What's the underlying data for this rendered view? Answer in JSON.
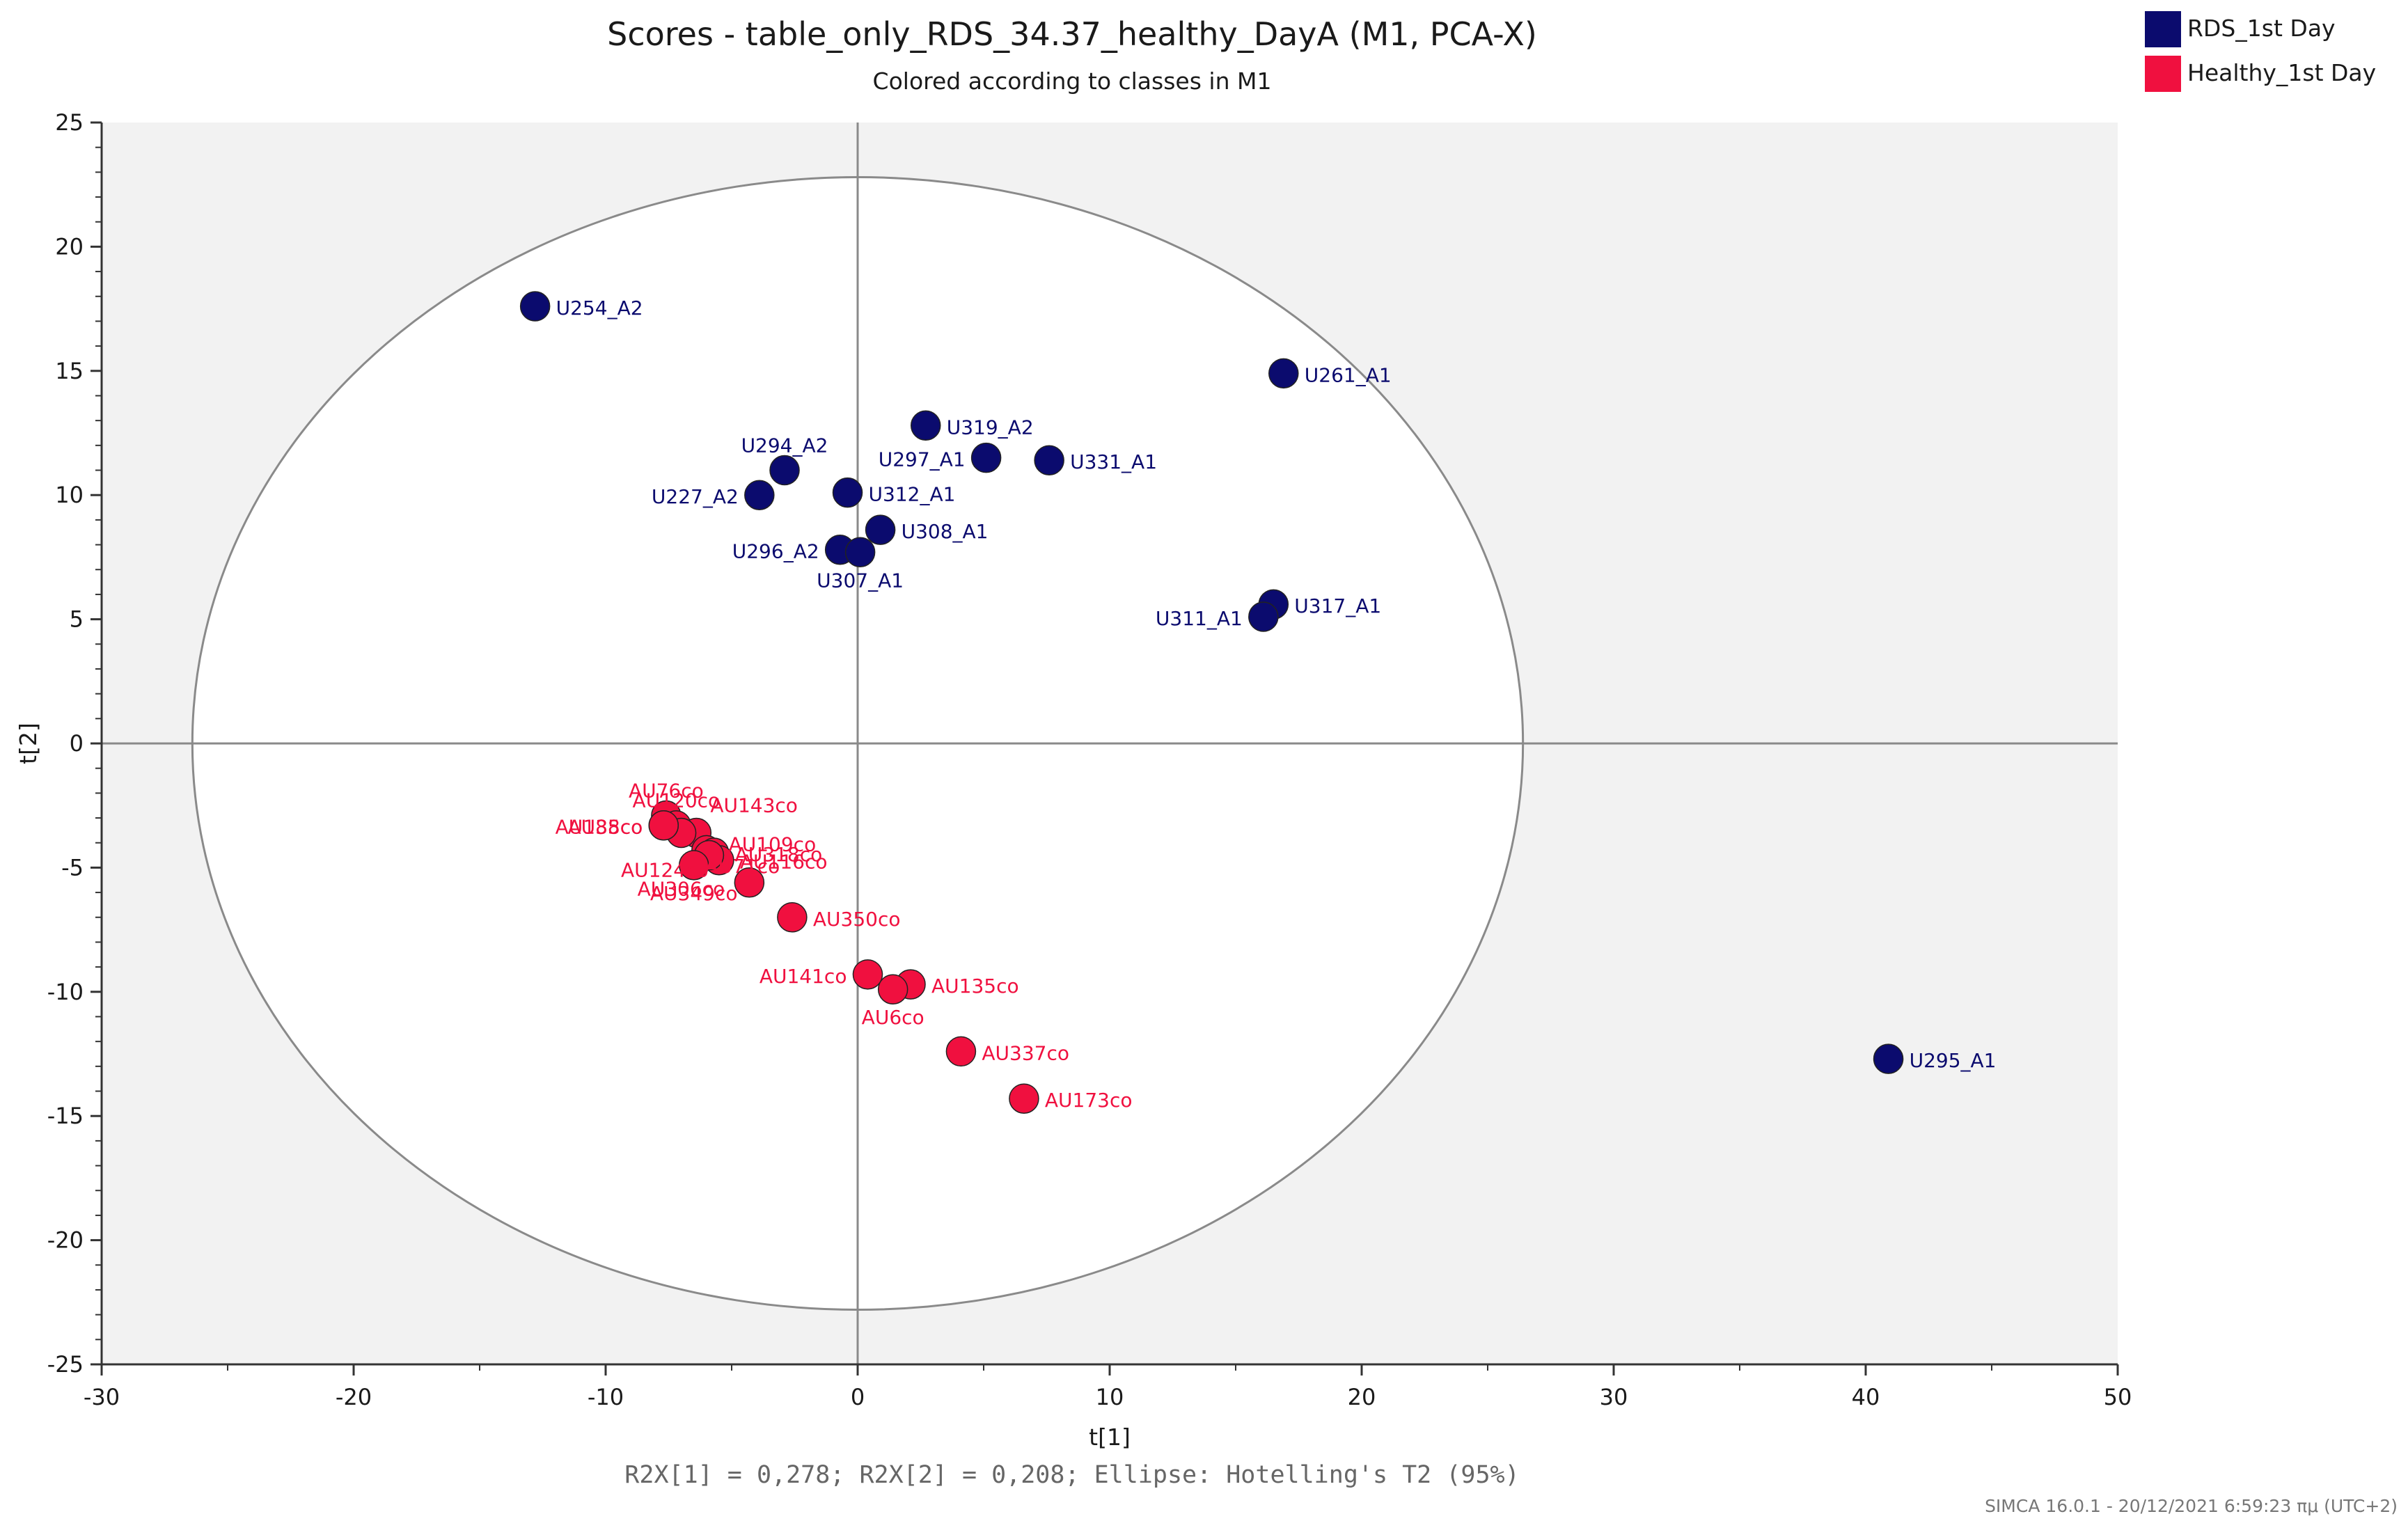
{
  "chart_data": {
    "type": "scatter",
    "title": "Scores - table_only_RDS_34.37_healthy_DayA (M1, PCA-X)",
    "subtitle": "Colored according to classes in M1",
    "xlabel": "t[1]",
    "ylabel": "t[2]",
    "xlim": [
      -30,
      50
    ],
    "ylim": [
      -25,
      25
    ],
    "xticks": [
      -30,
      -20,
      -10,
      0,
      10,
      20,
      30,
      40,
      50
    ],
    "yticks": [
      -25,
      -20,
      -15,
      -10,
      -5,
      0,
      5,
      10,
      15,
      20,
      25
    ],
    "ellipse": {
      "label": "Hotelling's T2 (95%)",
      "rx": 26.4,
      "ry": 22.8
    },
    "footer": "R2X[1] = 0,278; R2X[2] = 0,208; Ellipse: Hotelling's T2 (95%)",
    "stamp": "SIMCA 16.0.1 - 20/12/2021 6:59:23 πμ (UTC+2)",
    "legend": [
      {
        "name": "RDS_1st Day",
        "color": "#0b0b6e"
      },
      {
        "name": "Healthy_1st Day",
        "color": "#f0103f"
      }
    ],
    "series": [
      {
        "name": "RDS_1st Day",
        "color": "#0b0b6e",
        "points": [
          {
            "label": "U254_A2",
            "x": -12.8,
            "y": 17.6,
            "anchor": "right"
          },
          {
            "label": "U261_A1",
            "x": 16.9,
            "y": 14.9,
            "anchor": "right"
          },
          {
            "label": "U319_A2",
            "x": 2.7,
            "y": 12.8,
            "anchor": "right"
          },
          {
            "label": "U294_A2",
            "x": -2.9,
            "y": 11.0,
            "anchor": "above"
          },
          {
            "label": "U297_A1",
            "x": 5.1,
            "y": 11.5,
            "anchor": "left"
          },
          {
            "label": "U331_A1",
            "x": 7.6,
            "y": 11.4,
            "anchor": "right"
          },
          {
            "label": "U227_A2",
            "x": -3.9,
            "y": 10.0,
            "anchor": "left"
          },
          {
            "label": "U312_A1",
            "x": -0.4,
            "y": 10.1,
            "anchor": "right"
          },
          {
            "label": "U308_A1",
            "x": 0.9,
            "y": 8.6,
            "anchor": "right"
          },
          {
            "label": "U296_A2",
            "x": -0.7,
            "y": 7.8,
            "anchor": "left"
          },
          {
            "label": "U307_A1",
            "x": 0.1,
            "y": 7.7,
            "anchor": "below"
          },
          {
            "label": "U317_A1",
            "x": 16.5,
            "y": 5.6,
            "anchor": "right"
          },
          {
            "label": "U311_A1",
            "x": 16.1,
            "y": 5.1,
            "anchor": "left"
          },
          {
            "label": "U295_A1",
            "x": 40.9,
            "y": -12.7,
            "anchor": "right"
          }
        ]
      },
      {
        "name": "Healthy_1st Day",
        "color": "#f0103f",
        "points": [
          {
            "label": "AU76co",
            "x": -7.6,
            "y": -2.9,
            "anchor": "above"
          },
          {
            "label": "AU120co",
            "x": -7.2,
            "y": -3.3,
            "anchor": "above"
          },
          {
            "label": "AU143co",
            "x": -6.4,
            "y": -3.6,
            "anchor": "aboveright"
          },
          {
            "label": "AU109co",
            "x": -7.0,
            "y": -3.6,
            "anchor": "rightfar"
          },
          {
            "label": "AU185co",
            "x": -7.7,
            "y": -3.3,
            "anchor": "left"
          },
          {
            "label": "AU38co",
            "x": -7.7,
            "y": -3.3,
            "anchor": "left"
          },
          {
            "label": "AU124co",
            "x": -6.0,
            "y": -4.3,
            "anchor": "belowleft"
          },
          {
            "label": "AU318co",
            "x": -5.7,
            "y": -4.4,
            "anchor": "right"
          },
          {
            "label": "AU116co",
            "x": -5.5,
            "y": -4.7,
            "anchor": "right"
          },
          {
            "label": "AU71co",
            "x": -4.3,
            "y": -5.6,
            "anchor": "upright"
          },
          {
            "label": "AU306co",
            "x": -5.9,
            "y": -4.5,
            "anchor": "belowleft2"
          },
          {
            "label": "AU349co",
            "x": -6.5,
            "y": -4.9,
            "anchor": "below"
          },
          {
            "label": "AU350co",
            "x": -2.6,
            "y": -7.0,
            "anchor": "right"
          },
          {
            "label": "AU141co",
            "x": 0.4,
            "y": -9.3,
            "anchor": "left"
          },
          {
            "label": "AU135co",
            "x": 2.1,
            "y": -9.7,
            "anchor": "right"
          },
          {
            "label": "AU6co",
            "x": 1.4,
            "y": -9.9,
            "anchor": "below"
          },
          {
            "label": "AU337co",
            "x": 4.1,
            "y": -12.4,
            "anchor": "right"
          },
          {
            "label": "AU173co",
            "x": 6.6,
            "y": -14.3,
            "anchor": "right"
          }
        ]
      }
    ]
  }
}
